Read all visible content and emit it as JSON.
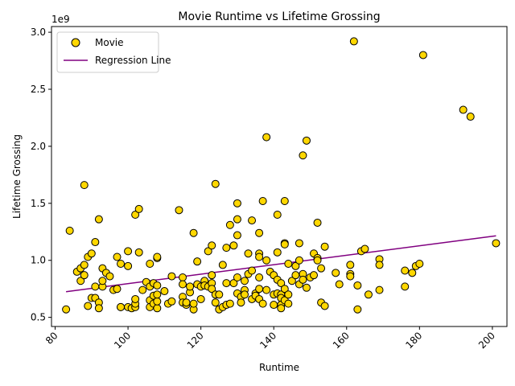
{
  "chart_data": {
    "type": "scatter",
    "title": "Movie Runtime vs Lifetime Grossing",
    "xlabel": "Runtime",
    "ylabel": "Lifetime Grossing",
    "y_offset_label": "1e9",
    "xlim": [
      79,
      204
    ],
    "ylim": [
      0.42,
      3.05
    ],
    "x_ticks": [
      80,
      100,
      120,
      140,
      160,
      180,
      200
    ],
    "y_ticks": [
      0.5,
      1.0,
      1.5,
      2.0,
      2.5,
      3.0
    ],
    "x_tick_labels": [
      "80",
      "100",
      "120",
      "140",
      "160",
      "180",
      "200"
    ],
    "y_tick_labels": [
      "0.5",
      "1.0",
      "1.5",
      "2.0",
      "2.5",
      "3.0"
    ],
    "grid": false,
    "legend_position": "upper-left",
    "series": [
      {
        "name": "Movie",
        "kind": "scatter",
        "color": "#FFD700",
        "edgecolor": "#000000",
        "points": [
          [
            83,
            0.57
          ],
          [
            84,
            1.26
          ],
          [
            86,
            0.9
          ],
          [
            87,
            0.82
          ],
          [
            87,
            0.93
          ],
          [
            88,
            0.96
          ],
          [
            88,
            0.87
          ],
          [
            88,
            1.66
          ],
          [
            89,
            0.6
          ],
          [
            89,
            1.03
          ],
          [
            90,
            1.06
          ],
          [
            90,
            0.67
          ],
          [
            91,
            0.77
          ],
          [
            91,
            0.67
          ],
          [
            91,
            1.16
          ],
          [
            92,
            1.36
          ],
          [
            92,
            0.63
          ],
          [
            92,
            0.58
          ],
          [
            93,
            0.77
          ],
          [
            93,
            0.82
          ],
          [
            93,
            0.93
          ],
          [
            94,
            0.89
          ],
          [
            95,
            0.86
          ],
          [
            96,
            0.74
          ],
          [
            97,
            0.75
          ],
          [
            97,
            1.03
          ],
          [
            98,
            0.97
          ],
          [
            98,
            0.59
          ],
          [
            98,
            0.59
          ],
          [
            100,
            0.59
          ],
          [
            100,
            0.95
          ],
          [
            100,
            1.08
          ],
          [
            101,
            0.58
          ],
          [
            102,
            0.59
          ],
          [
            102,
            0.62
          ],
          [
            102,
            0.66
          ],
          [
            102,
            1.4
          ],
          [
            103,
            1.45
          ],
          [
            103,
            1.07
          ],
          [
            104,
            0.74
          ],
          [
            105,
            0.81
          ],
          [
            106,
            0.77
          ],
          [
            106,
            0.97
          ],
          [
            106,
            0.65
          ],
          [
            106,
            0.59
          ],
          [
            107,
            0.8
          ],
          [
            107,
            0.69
          ],
          [
            107,
            0.62
          ],
          [
            108,
            0.58
          ],
          [
            108,
            0.64
          ],
          [
            108,
            0.7
          ],
          [
            108,
            0.78
          ],
          [
            108,
            1.02
          ],
          [
            108,
            1.03
          ],
          [
            110,
            0.73
          ],
          [
            111,
            0.62
          ],
          [
            112,
            0.86
          ],
          [
            112,
            0.64
          ],
          [
            114,
            1.44
          ],
          [
            115,
            0.85
          ],
          [
            115,
            0.79
          ],
          [
            115,
            0.68
          ],
          [
            115,
            0.63
          ],
          [
            116,
            0.61
          ],
          [
            116,
            0.63
          ],
          [
            117,
            0.72
          ],
          [
            117,
            0.77
          ],
          [
            118,
            0.57
          ],
          [
            118,
            0.62
          ],
          [
            118,
            1.24
          ],
          [
            119,
            0.99
          ],
          [
            119,
            0.79
          ],
          [
            120,
            0.66
          ],
          [
            120,
            0.77
          ],
          [
            121,
            0.82
          ],
          [
            121,
            0.78
          ],
          [
            122,
            0.77
          ],
          [
            122,
            1.08
          ],
          [
            123,
            1.13
          ],
          [
            123,
            0.87
          ],
          [
            123,
            0.8
          ],
          [
            123,
            0.75
          ],
          [
            124,
            1.67
          ],
          [
            124,
            0.7
          ],
          [
            124,
            0.63
          ],
          [
            125,
            0.7
          ],
          [
            125,
            0.57
          ],
          [
            126,
            0.96
          ],
          [
            126,
            0.59
          ],
          [
            127,
            1.11
          ],
          [
            127,
            0.61
          ],
          [
            127,
            0.8
          ],
          [
            128,
            1.31
          ],
          [
            128,
            0.62
          ],
          [
            129,
            1.13
          ],
          [
            129,
            0.8
          ],
          [
            130,
            1.5
          ],
          [
            130,
            1.36
          ],
          [
            130,
            1.22
          ],
          [
            130,
            0.85
          ],
          [
            130,
            0.71
          ],
          [
            131,
            0.68
          ],
          [
            131,
            0.63
          ],
          [
            132,
            0.82
          ],
          [
            132,
            0.74
          ],
          [
            132,
            0.7
          ],
          [
            133,
            1.06
          ],
          [
            133,
            0.88
          ],
          [
            134,
            1.35
          ],
          [
            134,
            0.91
          ],
          [
            134,
            0.66
          ],
          [
            135,
            0.71
          ],
          [
            135,
            0.69
          ],
          [
            136,
            1.24
          ],
          [
            136,
            1.06
          ],
          [
            136,
            1.03
          ],
          [
            136,
            0.85
          ],
          [
            136,
            0.75
          ],
          [
            136,
            0.66
          ],
          [
            137,
            1.52
          ],
          [
            137,
            0.62
          ],
          [
            138,
            2.08
          ],
          [
            138,
            1.0
          ],
          [
            138,
            0.74
          ],
          [
            139,
            0.9
          ],
          [
            140,
            0.87
          ],
          [
            140,
            0.7
          ],
          [
            140,
            0.61
          ],
          [
            141,
            1.4
          ],
          [
            141,
            1.07
          ],
          [
            141,
            0.83
          ],
          [
            141,
            0.71
          ],
          [
            142,
            0.8
          ],
          [
            142,
            0.7
          ],
          [
            142,
            0.67
          ],
          [
            142,
            0.61
          ],
          [
            142,
            0.58
          ],
          [
            143,
            1.52
          ],
          [
            143,
            1.15
          ],
          [
            143,
            1.14
          ],
          [
            143,
            0.75
          ],
          [
            143,
            0.65
          ],
          [
            144,
            0.97
          ],
          [
            144,
            0.7
          ],
          [
            144,
            0.62
          ],
          [
            145,
            0.82
          ],
          [
            146,
            0.95
          ],
          [
            146,
            0.87
          ],
          [
            147,
            1.15
          ],
          [
            147,
            1.0
          ],
          [
            147,
            0.79
          ],
          [
            148,
            1.92
          ],
          [
            148,
            0.88
          ],
          [
            148,
            0.83
          ],
          [
            149,
            2.05
          ],
          [
            149,
            0.76
          ],
          [
            150,
            0.85
          ],
          [
            151,
            1.06
          ],
          [
            151,
            0.87
          ],
          [
            152,
            1.33
          ],
          [
            152,
            1.02
          ],
          [
            152,
            1.0
          ],
          [
            153,
            0.93
          ],
          [
            153,
            0.63
          ],
          [
            154,
            0.6
          ],
          [
            154,
            1.12
          ],
          [
            157,
            0.89
          ],
          [
            158,
            0.79
          ],
          [
            161,
            0.96
          ],
          [
            161,
            0.88
          ],
          [
            161,
            0.86
          ],
          [
            162,
            2.92
          ],
          [
            163,
            0.78
          ],
          [
            163,
            0.57
          ],
          [
            164,
            1.08
          ],
          [
            165,
            1.1
          ],
          [
            166,
            0.7
          ],
          [
            169,
            1.01
          ],
          [
            169,
            0.96
          ],
          [
            169,
            0.74
          ],
          [
            176,
            0.91
          ],
          [
            176,
            0.77
          ],
          [
            178,
            0.89
          ],
          [
            179,
            0.95
          ],
          [
            180,
            0.97
          ],
          [
            181,
            2.8
          ],
          [
            192,
            2.32
          ],
          [
            194,
            2.26
          ],
          [
            201,
            1.15
          ]
        ]
      },
      {
        "name": "Regression Line",
        "kind": "line",
        "color": "#800080",
        "points": [
          [
            83,
            0.725
          ],
          [
            201,
            1.215
          ]
        ]
      }
    ]
  }
}
